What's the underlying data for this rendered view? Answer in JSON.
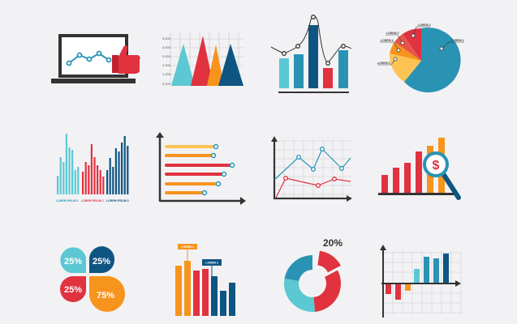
{
  "colors": {
    "cyan": "#5bc8d3",
    "teal": "#2a93b4",
    "navy": "#0f5582",
    "red": "#e0323f",
    "orange": "#f7941d",
    "yellow": "#fdc453",
    "dark": "#333333",
    "background": "#f2f2f4"
  },
  "icons": [
    {
      "name": "laptop-line-chart-thumbs-up"
    },
    {
      "name": "triangle-area-chart",
      "y_ticks": [
        "5,000",
        "4,000",
        "3,000",
        "2,000",
        "1,000",
        "0,000"
      ]
    },
    {
      "name": "bar-with-curve-chart"
    },
    {
      "name": "pie-chart",
      "labels": [
        "LOREM 1",
        "LOREM 2",
        "LOREM 3",
        "LOREM 4",
        "LOREM 5"
      ]
    },
    {
      "name": "grouped-thin-bar-chart",
      "labels": [
        "LOREM IPSUM 1",
        "LOREM IPSUM 2",
        "LOREM IPSUM 3"
      ]
    },
    {
      "name": "horizontal-bar-chart"
    },
    {
      "name": "dual-line-chart"
    },
    {
      "name": "bar-chart-magnifier",
      "symbol": "$"
    },
    {
      "name": "quadrant-percent-chart",
      "values": [
        "25%",
        "25%",
        "25%",
        "75%"
      ]
    },
    {
      "name": "bar-chart-callouts",
      "labels": [
        "LOREM 1",
        "LOREM 2"
      ]
    },
    {
      "name": "donut-chart",
      "value": "20%"
    },
    {
      "name": "positive-negative-bar-chart"
    }
  ]
}
